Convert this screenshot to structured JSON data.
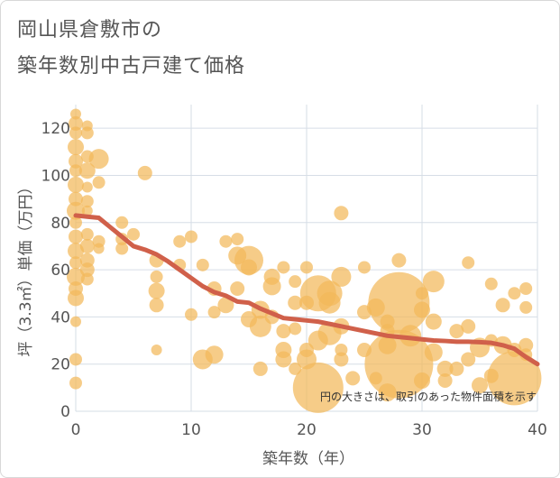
{
  "title_lines": [
    "岡山県倉敷市の",
    "築年数別中古戸建て価格"
  ],
  "chart_data": {
    "type": "scatter",
    "xlabel": "築年数（年）",
    "ylabel": "坪（3.3㎡）単価（万円）",
    "xlim": [
      0,
      40
    ],
    "ylim": [
      0,
      130
    ],
    "x_ticks": [
      0,
      10,
      20,
      30,
      40
    ],
    "y_ticks": [
      0,
      20,
      40,
      60,
      80,
      100,
      120
    ],
    "grid": true,
    "note": "円の大きさは、取引のあった物件面積を示す",
    "bubble_color": "#f3b95a",
    "trend_color": "#d0604a",
    "trend_line": {
      "x": [
        0,
        1,
        2,
        3,
        4,
        5,
        6,
        7,
        8,
        9,
        10,
        11,
        12,
        13,
        14,
        15,
        16,
        17,
        18,
        19,
        20,
        21,
        22,
        23,
        24,
        25,
        26,
        27,
        28,
        29,
        30,
        31,
        32,
        33,
        34,
        35,
        36,
        37,
        38,
        39,
        40
      ],
      "y": [
        83,
        82.5,
        82,
        78,
        74,
        70,
        68.5,
        66.5,
        63.5,
        60,
        56.5,
        53,
        50.5,
        49,
        46.5,
        46,
        43.5,
        41.5,
        39.5,
        39,
        38.5,
        38,
        37,
        36,
        35,
        34,
        33,
        32,
        31.5,
        31,
        30.5,
        30,
        29.8,
        29.5,
        29.5,
        29.3,
        29,
        28,
        26.5,
        23,
        20
      ]
    },
    "points": [
      {
        "x": 0,
        "y": 126,
        "s": 6
      },
      {
        "x": 0,
        "y": 122,
        "s": 8
      },
      {
        "x": 0,
        "y": 118,
        "s": 7
      },
      {
        "x": 0,
        "y": 112,
        "s": 9
      },
      {
        "x": 0,
        "y": 106,
        "s": 8
      },
      {
        "x": 0,
        "y": 102,
        "s": 7
      },
      {
        "x": 0,
        "y": 96,
        "s": 9
      },
      {
        "x": 0,
        "y": 90,
        "s": 8
      },
      {
        "x": 0,
        "y": 85,
        "s": 10
      },
      {
        "x": 0,
        "y": 80,
        "s": 7
      },
      {
        "x": 0,
        "y": 74,
        "s": 8
      },
      {
        "x": 0,
        "y": 68,
        "s": 9
      },
      {
        "x": 0,
        "y": 63,
        "s": 7
      },
      {
        "x": 0,
        "y": 57,
        "s": 10
      },
      {
        "x": 0,
        "y": 52,
        "s": 8
      },
      {
        "x": 0,
        "y": 48,
        "s": 9
      },
      {
        "x": 0,
        "y": 38,
        "s": 6
      },
      {
        "x": 0,
        "y": 22,
        "s": 7
      },
      {
        "x": 0,
        "y": 12,
        "s": 7
      },
      {
        "x": 1,
        "y": 121,
        "s": 6
      },
      {
        "x": 1,
        "y": 118,
        "s": 7
      },
      {
        "x": 1,
        "y": 108,
        "s": 7
      },
      {
        "x": 1,
        "y": 102,
        "s": 9
      },
      {
        "x": 1,
        "y": 95,
        "s": 6
      },
      {
        "x": 1,
        "y": 89,
        "s": 7
      },
      {
        "x": 1,
        "y": 85,
        "s": 6
      },
      {
        "x": 1,
        "y": 75,
        "s": 7
      },
      {
        "x": 1,
        "y": 70,
        "s": 8
      },
      {
        "x": 1,
        "y": 64,
        "s": 8
      },
      {
        "x": 1,
        "y": 60,
        "s": 8
      },
      {
        "x": 1,
        "y": 56,
        "s": 7
      },
      {
        "x": 2,
        "y": 107,
        "s": 11
      },
      {
        "x": 2,
        "y": 97,
        "s": 7
      },
      {
        "x": 2,
        "y": 72,
        "s": 7
      },
      {
        "x": 2,
        "y": 69,
        "s": 6
      },
      {
        "x": 4,
        "y": 80,
        "s": 7
      },
      {
        "x": 4,
        "y": 73,
        "s": 7
      },
      {
        "x": 4,
        "y": 69,
        "s": 7
      },
      {
        "x": 5,
        "y": 75,
        "s": 7
      },
      {
        "x": 6,
        "y": 101,
        "s": 8
      },
      {
        "x": 7,
        "y": 64,
        "s": 8
      },
      {
        "x": 7,
        "y": 57,
        "s": 7
      },
      {
        "x": 7,
        "y": 51,
        "s": 9
      },
      {
        "x": 7,
        "y": 45,
        "s": 8
      },
      {
        "x": 7,
        "y": 26,
        "s": 6
      },
      {
        "x": 9,
        "y": 72,
        "s": 7
      },
      {
        "x": 9,
        "y": 62,
        "s": 7
      },
      {
        "x": 10,
        "y": 74,
        "s": 7
      },
      {
        "x": 10,
        "y": 41,
        "s": 7
      },
      {
        "x": 11,
        "y": 62,
        "s": 7
      },
      {
        "x": 11,
        "y": 22,
        "s": 11
      },
      {
        "x": 12,
        "y": 52,
        "s": 8
      },
      {
        "x": 12,
        "y": 42,
        "s": 7
      },
      {
        "x": 12,
        "y": 24,
        "s": 10
      },
      {
        "x": 13,
        "y": 72,
        "s": 7
      },
      {
        "x": 13,
        "y": 45,
        "s": 9
      },
      {
        "x": 14,
        "y": 73,
        "s": 7
      },
      {
        "x": 14,
        "y": 66,
        "s": 10
      },
      {
        "x": 14,
        "y": 52,
        "s": 8
      },
      {
        "x": 15,
        "y": 64,
        "s": 16
      },
      {
        "x": 15,
        "y": 61,
        "s": 9
      },
      {
        "x": 15,
        "y": 39,
        "s": 9
      },
      {
        "x": 16,
        "y": 43,
        "s": 10
      },
      {
        "x": 16,
        "y": 36,
        "s": 12
      },
      {
        "x": 16,
        "y": 18,
        "s": 8
      },
      {
        "x": 17,
        "y": 57,
        "s": 9
      },
      {
        "x": 17,
        "y": 53,
        "s": 10
      },
      {
        "x": 17,
        "y": 40,
        "s": 8
      },
      {
        "x": 18,
        "y": 61,
        "s": 7
      },
      {
        "x": 18,
        "y": 34,
        "s": 8
      },
      {
        "x": 18,
        "y": 26,
        "s": 9
      },
      {
        "x": 18,
        "y": 22,
        "s": 9
      },
      {
        "x": 19,
        "y": 55,
        "s": 7
      },
      {
        "x": 19,
        "y": 46,
        "s": 8
      },
      {
        "x": 19,
        "y": 35,
        "s": 7
      },
      {
        "x": 19,
        "y": 18,
        "s": 7
      },
      {
        "x": 20,
        "y": 61,
        "s": 7
      },
      {
        "x": 20,
        "y": 46,
        "s": 8
      },
      {
        "x": 20,
        "y": 26,
        "s": 8
      },
      {
        "x": 20,
        "y": 22,
        "s": 11
      },
      {
        "x": 21,
        "y": 50,
        "s": 20
      },
      {
        "x": 21,
        "y": 30,
        "s": 11
      },
      {
        "x": 21,
        "y": 10,
        "s": 28
      },
      {
        "x": 22,
        "y": 50,
        "s": 14
      },
      {
        "x": 22,
        "y": 46,
        "s": 12
      },
      {
        "x": 22,
        "y": 33,
        "s": 13
      },
      {
        "x": 23,
        "y": 84,
        "s": 8
      },
      {
        "x": 23,
        "y": 57,
        "s": 11
      },
      {
        "x": 23,
        "y": 36,
        "s": 9
      },
      {
        "x": 23,
        "y": 26,
        "s": 7
      },
      {
        "x": 23,
        "y": 22,
        "s": 8
      },
      {
        "x": 24,
        "y": 14,
        "s": 8
      },
      {
        "x": 25,
        "y": 61,
        "s": 7
      },
      {
        "x": 25,
        "y": 42,
        "s": 8
      },
      {
        "x": 25,
        "y": 26,
        "s": 8
      },
      {
        "x": 26,
        "y": 44,
        "s": 10
      },
      {
        "x": 26,
        "y": 14,
        "s": 7
      },
      {
        "x": 27,
        "y": 38,
        "s": 8
      },
      {
        "x": 27,
        "y": 34,
        "s": 8
      },
      {
        "x": 27,
        "y": 28,
        "s": 10
      },
      {
        "x": 27,
        "y": 8,
        "s": 10
      },
      {
        "x": 28,
        "y": 64,
        "s": 8
      },
      {
        "x": 28,
        "y": 46,
        "s": 34
      },
      {
        "x": 28,
        "y": 20,
        "s": 38
      },
      {
        "x": 29,
        "y": 32,
        "s": 12
      },
      {
        "x": 30,
        "y": 50,
        "s": 7
      },
      {
        "x": 30,
        "y": 43,
        "s": 9
      },
      {
        "x": 30,
        "y": 13,
        "s": 9
      },
      {
        "x": 31,
        "y": 55,
        "s": 12
      },
      {
        "x": 31,
        "y": 38,
        "s": 9
      },
      {
        "x": 31,
        "y": 25,
        "s": 10
      },
      {
        "x": 32,
        "y": 18,
        "s": 9
      },
      {
        "x": 32,
        "y": 13,
        "s": 8
      },
      {
        "x": 33,
        "y": 34,
        "s": 8
      },
      {
        "x": 33,
        "y": 18,
        "s": 8
      },
      {
        "x": 34,
        "y": 63,
        "s": 7
      },
      {
        "x": 34,
        "y": 36,
        "s": 8
      },
      {
        "x": 34,
        "y": 22,
        "s": 8
      },
      {
        "x": 35,
        "y": 27,
        "s": 11
      },
      {
        "x": 35,
        "y": 11,
        "s": 9
      },
      {
        "x": 36,
        "y": 54,
        "s": 7
      },
      {
        "x": 36,
        "y": 30,
        "s": 7
      },
      {
        "x": 36,
        "y": 15,
        "s": 8
      },
      {
        "x": 37,
        "y": 45,
        "s": 8
      },
      {
        "x": 37,
        "y": 28,
        "s": 10
      },
      {
        "x": 38,
        "y": 50,
        "s": 7
      },
      {
        "x": 38,
        "y": 26,
        "s": 8
      },
      {
        "x": 39,
        "y": 52,
        "s": 7
      },
      {
        "x": 39,
        "y": 44,
        "s": 7
      },
      {
        "x": 39,
        "y": 28,
        "s": 8
      },
      {
        "x": 39,
        "y": 24,
        "s": 7
      },
      {
        "x": 38,
        "y": 14,
        "s": 30
      }
    ]
  }
}
